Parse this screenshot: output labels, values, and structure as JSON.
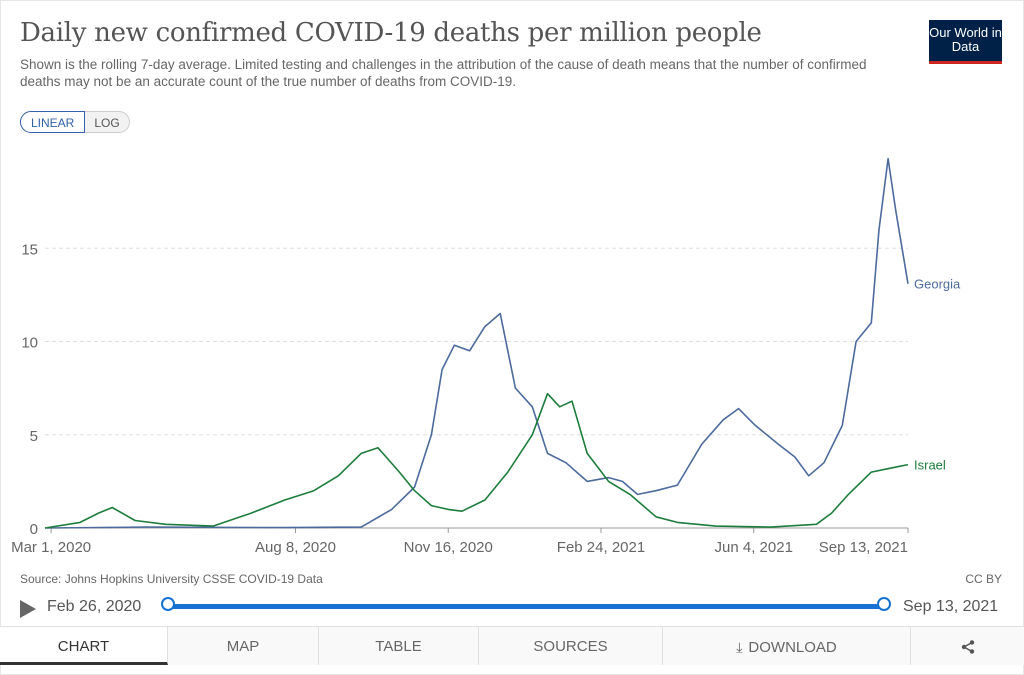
{
  "header": {
    "title": "Daily new confirmed COVID-19 deaths per million people",
    "subtitle": "Shown is the rolling 7-day average. Limited testing and challenges in the attribution of the cause of death means that the number of confirmed deaths may not be an accurate count of the true number of deaths from COVID-19.",
    "logo": "Our World in Data"
  },
  "scale": {
    "linear": "LINEAR",
    "log": "LOG",
    "selected": "LINEAR"
  },
  "chart_data": {
    "type": "line",
    "x_tick_labels": [
      "Mar 1, 2020",
      "Aug 8, 2020",
      "Nov 16, 2020",
      "Feb 24, 2021",
      "Jun 4, 2021",
      "Sep 13, 2021"
    ],
    "y_ticks": [
      0,
      5,
      10,
      15
    ],
    "ylim": [
      0,
      20
    ],
    "xlim": [
      "2020-02-26",
      "2021-09-13"
    ],
    "grid": "horizontal",
    "series": [
      {
        "name": "Georgia",
        "color": "#4c6a9c",
        "points": [
          [
            "2020-02-26",
            0
          ],
          [
            "2020-05-01",
            0.05
          ],
          [
            "2020-08-01",
            0.02
          ],
          [
            "2020-09-20",
            0.05
          ],
          [
            "2020-10-10",
            1.0
          ],
          [
            "2020-10-25",
            2.2
          ],
          [
            "2020-11-05",
            5.0
          ],
          [
            "2020-11-12",
            8.5
          ],
          [
            "2020-11-20",
            9.8
          ],
          [
            "2020-11-30",
            9.5
          ],
          [
            "2020-12-10",
            10.8
          ],
          [
            "2020-12-20",
            11.5
          ],
          [
            "2020-12-30",
            7.5
          ],
          [
            "2021-01-10",
            6.5
          ],
          [
            "2021-01-20",
            4.0
          ],
          [
            "2021-02-01",
            3.5
          ],
          [
            "2021-02-15",
            2.5
          ],
          [
            "2021-03-01",
            2.7
          ],
          [
            "2021-03-10",
            2.5
          ],
          [
            "2021-03-20",
            1.8
          ],
          [
            "2021-04-01",
            2.0
          ],
          [
            "2021-04-15",
            2.3
          ],
          [
            "2021-05-01",
            4.5
          ],
          [
            "2021-05-15",
            5.8
          ],
          [
            "2021-05-25",
            6.4
          ],
          [
            "2021-06-05",
            5.5
          ],
          [
            "2021-06-20",
            4.5
          ],
          [
            "2021-07-01",
            3.8
          ],
          [
            "2021-07-10",
            2.8
          ],
          [
            "2021-07-20",
            3.5
          ],
          [
            "2021-08-01",
            5.5
          ],
          [
            "2021-08-10",
            10.0
          ],
          [
            "2021-08-20",
            11.0
          ],
          [
            "2021-08-25",
            16.0
          ],
          [
            "2021-08-31",
            19.8
          ],
          [
            "2021-09-05",
            17.0
          ],
          [
            "2021-09-13",
            13.1
          ]
        ]
      },
      {
        "name": "Israel",
        "color": "#1c7d3c",
        "points": [
          [
            "2020-02-26",
            0
          ],
          [
            "2020-03-20",
            0.3
          ],
          [
            "2020-04-01",
            0.8
          ],
          [
            "2020-04-10",
            1.1
          ],
          [
            "2020-04-25",
            0.4
          ],
          [
            "2020-05-15",
            0.2
          ],
          [
            "2020-06-15",
            0.1
          ],
          [
            "2020-07-10",
            0.8
          ],
          [
            "2020-08-01",
            1.5
          ],
          [
            "2020-08-20",
            2.0
          ],
          [
            "2020-09-05",
            2.8
          ],
          [
            "2020-09-20",
            4.0
          ],
          [
            "2020-10-01",
            4.3
          ],
          [
            "2020-10-15",
            3.0
          ],
          [
            "2020-10-25",
            2.0
          ],
          [
            "2020-11-05",
            1.2
          ],
          [
            "2020-11-16",
            1.0
          ],
          [
            "2020-11-25",
            0.9
          ],
          [
            "2020-12-10",
            1.5
          ],
          [
            "2020-12-25",
            3.0
          ],
          [
            "2021-01-10",
            5.0
          ],
          [
            "2021-01-20",
            7.2
          ],
          [
            "2021-01-28",
            6.5
          ],
          [
            "2021-02-05",
            6.8
          ],
          [
            "2021-02-15",
            4.0
          ],
          [
            "2021-03-01",
            2.5
          ],
          [
            "2021-03-15",
            1.8
          ],
          [
            "2021-04-01",
            0.6
          ],
          [
            "2021-04-15",
            0.3
          ],
          [
            "2021-05-10",
            0.1
          ],
          [
            "2021-06-15",
            0.05
          ],
          [
            "2021-07-15",
            0.2
          ],
          [
            "2021-07-25",
            0.8
          ],
          [
            "2021-08-05",
            1.8
          ],
          [
            "2021-08-20",
            3.0
          ],
          [
            "2021-09-01",
            3.2
          ],
          [
            "2021-09-13",
            3.4
          ]
        ]
      }
    ]
  },
  "footer": {
    "source": "Source: Johns Hopkins University CSSE COVID-19 Data",
    "license": "CC BY"
  },
  "timeline": {
    "start": "Feb 26, 2020",
    "end": "Sep 13, 2021",
    "start_fraction": 0,
    "end_fraction": 1
  },
  "tabs": [
    {
      "label": "CHART",
      "active": true
    },
    {
      "label": "MAP"
    },
    {
      "label": "TABLE"
    },
    {
      "label": "SOURCES"
    },
    {
      "label": "DOWNLOAD",
      "icon": "download-icon"
    },
    {
      "label": "",
      "icon": "share-icon"
    }
  ]
}
